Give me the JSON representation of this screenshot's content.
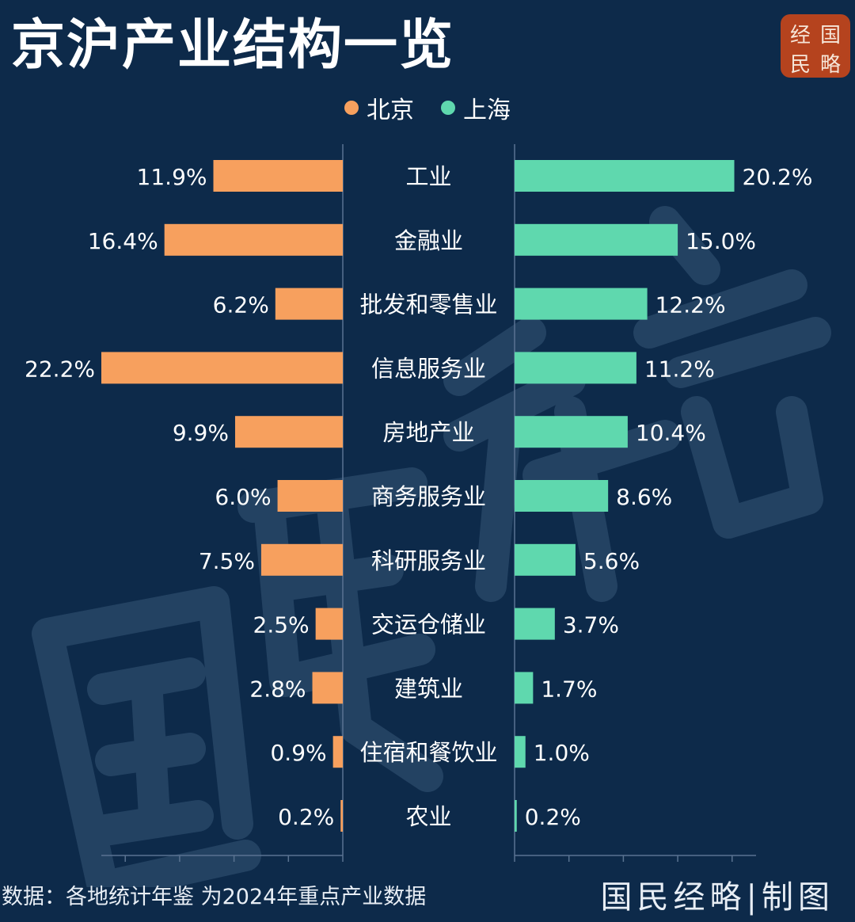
{
  "title": "京沪产业结构一览",
  "seal_chars": [
    "经",
    "国",
    "民",
    "略"
  ],
  "legend": [
    {
      "name": "北京",
      "color": "#f7a05e"
    },
    {
      "name": "上海",
      "color": "#5fd8ae"
    }
  ],
  "chart_data": {
    "type": "bar",
    "orientation": "horizontal-butterfly",
    "categories": [
      "工业",
      "金融业",
      "批发和零售业",
      "信息服务业",
      "房地产业",
      "商务服务业",
      "科研服务业",
      "交运仓储业",
      "建筑业",
      "住宿和餐饮业",
      "农业"
    ],
    "series": [
      {
        "name": "北京",
        "color": "#f7a05e",
        "values": [
          11.9,
          16.4,
          6.2,
          22.2,
          9.9,
          6.0,
          7.5,
          2.5,
          2.8,
          0.9,
          0.2
        ],
        "labels": [
          "11.9%",
          "16.4%",
          "6.2%",
          "22.2%",
          "9.9%",
          "6.0%",
          "7.5%",
          "2.5%",
          "2.8%",
          "0.9%",
          "0.2%"
        ]
      },
      {
        "name": "上海",
        "color": "#5fd8ae",
        "values": [
          20.2,
          15.0,
          12.2,
          11.2,
          10.4,
          8.6,
          5.6,
          3.7,
          1.7,
          1.0,
          0.2
        ],
        "labels": [
          "20.2%",
          "15.0%",
          "12.2%",
          "11.2%",
          "10.4%",
          "8.6%",
          "5.6%",
          "3.7%",
          "1.7%",
          "1.0%",
          "0.2%"
        ]
      }
    ],
    "xlim": [
      0,
      22.2
    ],
    "legend_position": "top-center",
    "grid": false
  },
  "footer": {
    "source": "数据：各地统计年鉴  为2024年重点产业数据",
    "credit": "国民经略|制图"
  },
  "watermark": "国民经略"
}
